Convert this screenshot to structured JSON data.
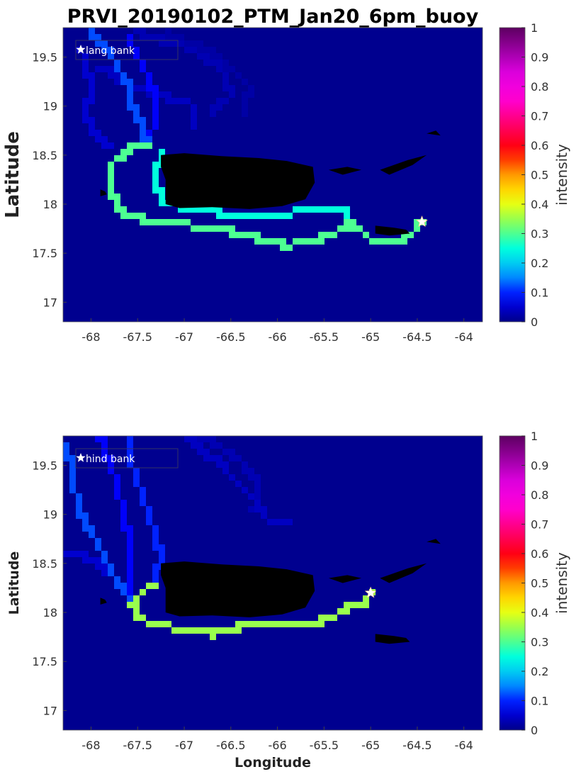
{
  "figure_title": "PRVI_20190102_PTM_Jan20_6pm_buoy",
  "xlabel": "Longitude",
  "colors": {
    "ocean": "#00008f",
    "land": "#000000",
    "star": "#ffffff",
    "colormap": [
      "#000088",
      "#0000ff",
      "#00aaff",
      "#00ffdd",
      "#80ff60",
      "#ffff00",
      "#ff9900",
      "#ff0000",
      "#ff0066",
      "#ff00cc",
      "#e800e8",
      "#a000a8",
      "#5c0060"
    ]
  },
  "chart_data": [
    {
      "type": "heatmap",
      "title": "PRVI_20190102_PTM_Jan20_6pm_buoy",
      "xlabel": "",
      "ylabel": "Latitude",
      "xlim": [
        -68.3,
        -63.8
      ],
      "ylim": [
        16.8,
        19.8
      ],
      "x_ticks": [
        "-68",
        "-67.5",
        "-67",
        "-66.5",
        "-66",
        "-65.5",
        "-65",
        "-64.5",
        "-64"
      ],
      "y_ticks": [
        "17",
        "17.5",
        "18",
        "18.5",
        "19",
        "19.5"
      ],
      "colorbar_label": "intensity",
      "colorbar_ticks": [
        "0",
        "0.1",
        "0.2",
        "0.3",
        "0.4",
        "0.5",
        "0.6",
        "0.7",
        "0.8",
        "0.9",
        "1"
      ],
      "source": {
        "name": "lang bank",
        "lon": -64.45,
        "lat": 17.82
      },
      "trajectories": [
        {
          "intensity": 0.3,
          "points": [
            [
              -64.45,
              17.82
            ],
            [
              -64.55,
              17.7
            ],
            [
              -64.7,
              17.62
            ],
            [
              -64.95,
              17.62
            ],
            [
              -65.05,
              17.68
            ],
            [
              -65.2,
              17.82
            ],
            [
              -65.35,
              17.72
            ],
            [
              -65.6,
              17.62
            ],
            [
              -65.9,
              17.58
            ],
            [
              -66.2,
              17.65
            ],
            [
              -66.5,
              17.72
            ],
            [
              -66.9,
              17.78
            ],
            [
              -67.3,
              17.82
            ],
            [
              -67.6,
              17.88
            ],
            [
              -67.75,
              18.05
            ],
            [
              -67.8,
              18.3
            ],
            [
              -67.75,
              18.45
            ],
            [
              -67.55,
              18.58
            ],
            [
              -67.4,
              18.62
            ]
          ]
        },
        {
          "intensity": 0.25,
          "points": [
            [
              -65.2,
              17.82
            ],
            [
              -65.25,
              17.92
            ],
            [
              -65.5,
              17.95
            ],
            [
              -65.8,
              17.92
            ],
            [
              -66.1,
              17.88
            ],
            [
              -66.5,
              17.9
            ],
            [
              -67.0,
              17.95
            ],
            [
              -67.25,
              18.05
            ],
            [
              -67.3,
              18.25
            ],
            [
              -67.25,
              18.5
            ]
          ]
        },
        {
          "intensity": 0.12,
          "points": [
            [
              -67.4,
              18.62
            ],
            [
              -67.45,
              18.8
            ],
            [
              -67.55,
              19.0
            ],
            [
              -67.6,
              19.2
            ],
            [
              -67.7,
              19.4
            ],
            [
              -67.85,
              19.6
            ],
            [
              -68.0,
              19.75
            ]
          ]
        },
        {
          "intensity": 0.08,
          "points": [
            [
              -67.4,
              18.62
            ],
            [
              -67.3,
              18.85
            ],
            [
              -67.3,
              19.1
            ],
            [
              -67.45,
              19.4
            ],
            [
              -67.6,
              19.7
            ]
          ]
        },
        {
          "intensity": 0.04,
          "points": [
            [
              -67.9,
              19.4
            ],
            [
              -67.6,
              19.2
            ],
            [
              -67.2,
              19.1
            ],
            [
              -66.9,
              19.0
            ],
            [
              -66.9,
              18.8
            ]
          ]
        },
        {
          "intensity": 0.03,
          "points": [
            [
              -67.5,
              19.75
            ],
            [
              -67.0,
              19.6
            ],
            [
              -66.6,
              19.4
            ],
            [
              -66.5,
              19.1
            ],
            [
              -66.7,
              18.95
            ]
          ]
        },
        {
          "intensity": 0.02,
          "points": [
            [
              -67.2,
              19.75
            ],
            [
              -66.7,
              19.55
            ],
            [
              -66.3,
              19.2
            ],
            [
              -66.35,
              18.95
            ]
          ]
        },
        {
          "intensity": 0.05,
          "points": [
            [
              -68.1,
              19.55
            ],
            [
              -68.0,
              19.2
            ],
            [
              -68.05,
              18.9
            ],
            [
              -67.95,
              18.7
            ],
            [
              -67.8,
              18.6
            ]
          ]
        }
      ]
    },
    {
      "type": "heatmap",
      "title": "",
      "xlabel": "Longitude",
      "ylabel": "Latitude",
      "xlim": [
        -68.3,
        -63.8
      ],
      "ylim": [
        16.8,
        19.8
      ],
      "x_ticks": [
        "-68",
        "-67.5",
        "-67",
        "-66.5",
        "-66",
        "-65.5",
        "-65",
        "-64.5",
        "-64"
      ],
      "y_ticks": [
        "17",
        "17.5",
        "18",
        "18.5",
        "19",
        "19.5"
      ],
      "colorbar_label": "intensity",
      "colorbar_ticks": [
        "0",
        "0.1",
        "0.2",
        "0.3",
        "0.4",
        "0.5",
        "0.6",
        "0.7",
        "0.8",
        "0.9",
        "1"
      ],
      "source": {
        "name": "hind bank",
        "lon": -65.0,
        "lat": 18.2
      },
      "trajectories": [
        {
          "intensity": 0.35,
          "points": [
            [
              -65.0,
              18.2
            ],
            [
              -65.05,
              18.1
            ],
            [
              -65.25,
              18.05
            ],
            [
              -65.45,
              17.92
            ],
            [
              -65.7,
              17.9
            ],
            [
              -66.0,
              17.88
            ],
            [
              -66.4,
              17.85
            ],
            [
              -66.7,
              17.78
            ],
            [
              -67.0,
              17.82
            ],
            [
              -67.3,
              17.88
            ],
            [
              -67.5,
              17.95
            ],
            [
              -67.55,
              18.1
            ],
            [
              -67.4,
              18.25
            ],
            [
              -67.3,
              18.3
            ]
          ]
        },
        {
          "intensity": 0.12,
          "points": [
            [
              -67.5,
              18.0
            ],
            [
              -67.65,
              18.2
            ],
            [
              -67.8,
              18.45
            ],
            [
              -67.95,
              18.75
            ],
            [
              -68.1,
              19.0
            ],
            [
              -68.2,
              19.35
            ],
            [
              -68.25,
              19.7
            ]
          ]
        },
        {
          "intensity": 0.1,
          "points": [
            [
              -67.3,
              18.3
            ],
            [
              -67.25,
              18.6
            ],
            [
              -67.35,
              18.9
            ],
            [
              -67.45,
              19.2
            ],
            [
              -67.55,
              19.5
            ],
            [
              -67.55,
              19.8
            ]
          ]
        },
        {
          "intensity": 0.08,
          "points": [
            [
              -67.6,
              18.2
            ],
            [
              -67.55,
              18.6
            ],
            [
              -67.65,
              19.0
            ],
            [
              -67.75,
              19.4
            ],
            [
              -67.9,
              19.8
            ]
          ]
        },
        {
          "intensity": 0.04,
          "points": [
            [
              -67.0,
              19.8
            ],
            [
              -66.6,
              19.5
            ],
            [
              -66.3,
              19.2
            ],
            [
              -66.1,
              18.95
            ],
            [
              -65.9,
              18.9
            ]
          ]
        },
        {
          "intensity": 0.03,
          "points": [
            [
              -66.8,
              19.8
            ],
            [
              -66.4,
              19.55
            ],
            [
              -66.2,
              19.3
            ],
            [
              -66.25,
              19.05
            ]
          ]
        },
        {
          "intensity": 0.05,
          "points": [
            [
              -68.25,
              18.6
            ],
            [
              -68.0,
              18.55
            ],
            [
              -67.8,
              18.4
            ]
          ]
        }
      ]
    }
  ]
}
